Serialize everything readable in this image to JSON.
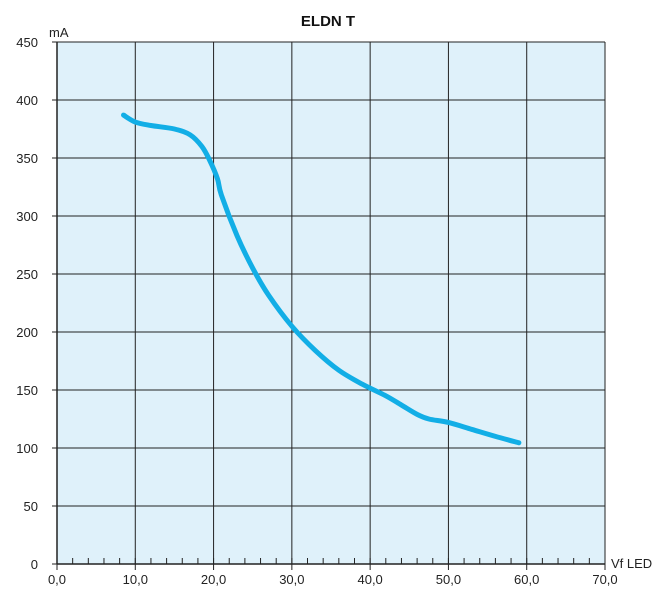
{
  "chart_data": {
    "type": "line",
    "title": "ELDN T",
    "xlabel": "Vf LED",
    "ylabel": "mA",
    "xlim": [
      0,
      70
    ],
    "ylim": [
      0,
      450
    ],
    "x_major_ticks": [
      0,
      10,
      20,
      30,
      40,
      50,
      60,
      70
    ],
    "x_tick_labels": [
      "0,0",
      "10,0",
      "20,0",
      "30,0",
      "40,0",
      "50,0",
      "60,0",
      "70,0"
    ],
    "x_minor_step": 2,
    "y_ticks": [
      0,
      50,
      100,
      150,
      200,
      250,
      300,
      350,
      400,
      450
    ],
    "y_tick_labels": [
      "0",
      "50",
      "100",
      "150",
      "200",
      "250",
      "300",
      "350",
      "400",
      "450"
    ],
    "grid": true,
    "legend": "none",
    "series": [
      {
        "points": [
          [
            8.5,
            387
          ],
          [
            10,
            381
          ],
          [
            12,
            378
          ],
          [
            15,
            375
          ],
          [
            17,
            370
          ],
          [
            18.5,
            360
          ],
          [
            19.5,
            348
          ],
          [
            20.5,
            332
          ],
          [
            21,
            318
          ],
          [
            23,
            283
          ],
          [
            25,
            255
          ],
          [
            27,
            232
          ],
          [
            30,
            205
          ],
          [
            33,
            184
          ],
          [
            36,
            167
          ],
          [
            39,
            155
          ],
          [
            42,
            145
          ],
          [
            44,
            137
          ],
          [
            46,
            129
          ],
          [
            47.5,
            125
          ],
          [
            50,
            122
          ],
          [
            53,
            116
          ],
          [
            56,
            110
          ],
          [
            59,
            104.5
          ]
        ]
      }
    ],
    "colors": {
      "plot_background": "#dff1fa",
      "grid": "#222222",
      "line": "#12aee6",
      "axis": "#222222"
    }
  }
}
